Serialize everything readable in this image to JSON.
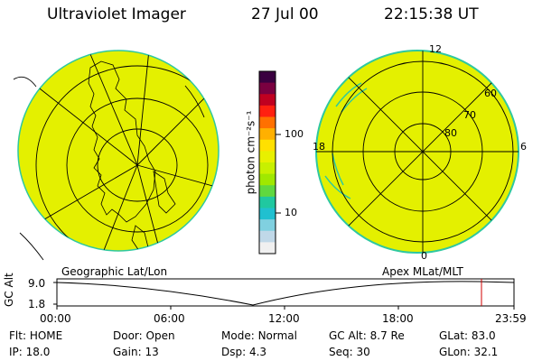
{
  "header": {
    "title": "Ultraviolet Imager",
    "date": "27 Jul 00",
    "time": "22:15:38 UT"
  },
  "left_panel": {
    "caption": "Geographic Lat/Lon"
  },
  "right_panel": {
    "caption": "Apex MLat/MLT",
    "mlt_labels": [
      "12",
      "18",
      "6",
      "0"
    ],
    "lat_labels": [
      "60",
      "70",
      "80"
    ]
  },
  "colorbar": {
    "unit_label": "photon cm⁻²s⁻¹",
    "ticks": [
      "100",
      "10"
    ],
    "colors": [
      "#3a0040",
      "#7a0040",
      "#c00020",
      "#ff2010",
      "#ff7000",
      "#ffb000",
      "#ffe000",
      "#e8f000",
      "#c8f000",
      "#a0e800",
      "#60d840",
      "#20c8a0",
      "#20c0d0",
      "#80d0e0",
      "#c0d8e8",
      "#f0f0f0"
    ]
  },
  "timeline": {
    "yaxis_label": "GC Alt",
    "y_max": "9.0",
    "y_min": "1.8",
    "x_ticks": [
      "00:00",
      "06:00",
      "12:00",
      "18:00",
      "23:59"
    ],
    "marker_color": "#d00000"
  },
  "status": {
    "row1": [
      {
        "key": "Flt:",
        "value": "HOME"
      },
      {
        "key": "Door:",
        "value": "Open"
      },
      {
        "key": "Mode:",
        "value": "Normal"
      },
      {
        "key": "GC Alt:",
        "value": "8.7 Re"
      },
      {
        "key": "GLat:",
        "value": "83.0"
      }
    ],
    "row2": [
      {
        "key": "IP:",
        "value": "18.0"
      },
      {
        "key": "Gain:",
        "value": "13"
      },
      {
        "key": "Dsp:",
        "value": "4.3"
      },
      {
        "key": "Seq:",
        "value": "30"
      },
      {
        "key": "GLon:",
        "value": "32.1"
      }
    ]
  },
  "colors": {
    "aurora_fill": "#e4f000",
    "aurora_edge": "#2ec8a0",
    "grid": "#000000"
  }
}
